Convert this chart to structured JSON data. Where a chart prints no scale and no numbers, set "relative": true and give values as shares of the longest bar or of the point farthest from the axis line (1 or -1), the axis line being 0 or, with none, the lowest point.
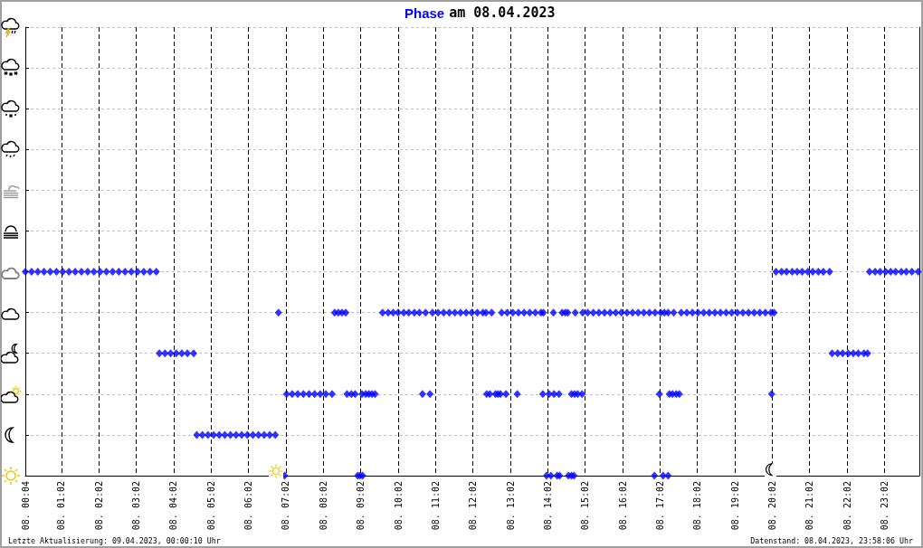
{
  "chart_data": {
    "type": "scatter",
    "title": "am 08.04.2023",
    "relative": true,
    "annotations": [
      "Letzte Aktualisierung: 09.04.2023, 00:00:10 Uhr",
      "Datenstand: 08.04.2023, 23:58:06 Uhr"
    ],
    "xlim": [
      "2023-04-08T00:04",
      "2023-04-08T23:58"
    ],
    "xticks": [
      {
        "value": "2023-04-08T00:04",
        "label": "08. 00:04"
      },
      {
        "value": "2023-04-08T01:02",
        "label": "08. 01:02"
      },
      {
        "value": "2023-04-08T02:02",
        "label": "08. 02:02"
      },
      {
        "value": "2023-04-08T03:02",
        "label": "08. 03:02"
      },
      {
        "value": "2023-04-08T04:02",
        "label": "08. 04:02"
      },
      {
        "value": "2023-04-08T05:02",
        "label": "08. 05:02"
      },
      {
        "value": "2023-04-08T06:02",
        "label": "08. 06:02"
      },
      {
        "value": "2023-04-08T07:02",
        "label": "08. 07:02"
      },
      {
        "value": "2023-04-08T08:02",
        "label": "08. 08:02"
      },
      {
        "value": "2023-04-08T09:02",
        "label": "08. 09:02"
      },
      {
        "value": "2023-04-08T10:02",
        "label": "08. 10:02"
      },
      {
        "value": "2023-04-08T11:02",
        "label": "08. 11:02"
      },
      {
        "value": "2023-04-08T12:02",
        "label": "08. 12:02"
      },
      {
        "value": "2023-04-08T13:02",
        "label": "08. 13:02"
      },
      {
        "value": "2023-04-08T14:02",
        "label": "08. 14:02"
      },
      {
        "value": "2023-04-08T15:02",
        "label": "08. 15:02"
      },
      {
        "value": "2023-04-08T16:02",
        "label": "08. 16:02"
      },
      {
        "value": "2023-04-08T17:02",
        "label": "08. 17:02"
      },
      {
        "value": "2023-04-08T18:02",
        "label": "08. 18:02"
      },
      {
        "value": "2023-04-08T19:02",
        "label": "08. 19:02"
      },
      {
        "value": "2023-04-08T20:02",
        "label": "08. 20:02"
      },
      {
        "value": "2023-04-08T21:02",
        "label": "08. 21:02"
      },
      {
        "value": "2023-04-08T22:02",
        "label": "08. 22:02"
      },
      {
        "value": "2023-04-08T23:02",
        "label": "08. 23:02"
      }
    ],
    "grid": true,
    "tick_labels": "x",
    "marker": "diamond",
    "series": [
      {
        "name": "Phase",
        "color": "#0000ff",
        "x": [
          "2023-04-08T00:04",
          "2023-04-08T00:14",
          "2023-04-08T00:24",
          "2023-04-08T00:34",
          "2023-04-08T00:44",
          "2023-04-08T00:54",
          "2023-04-08T01:04",
          "2023-04-08T01:14",
          "2023-04-08T01:24",
          "2023-04-08T01:34",
          "2023-04-08T01:44",
          "2023-04-08T01:54",
          "2023-04-08T02:04",
          "2023-04-08T02:14",
          "2023-04-08T02:24",
          "2023-04-08T02:34",
          "2023-04-08T02:44",
          "2023-04-08T02:54",
          "2023-04-08T03:04",
          "2023-04-08T03:14",
          "2023-04-08T03:24",
          "2023-04-08T03:34",
          "2023-04-08T03:39",
          "2023-04-08T03:48",
          "2023-04-08T03:57",
          "2023-04-08T04:06",
          "2023-04-08T04:15",
          "2023-04-08T04:24",
          "2023-04-08T04:34",
          "2023-04-08T04:39",
          "2023-04-08T04:48",
          "2023-04-08T04:57",
          "2023-04-08T05:06",
          "2023-04-08T05:15",
          "2023-04-08T05:24",
          "2023-04-08T05:33",
          "2023-04-08T05:42",
          "2023-04-08T05:51",
          "2023-04-08T06:00",
          "2023-04-08T06:09",
          "2023-04-08T06:18",
          "2023-04-08T06:27",
          "2023-04-08T06:36",
          "2023-04-08T06:45",
          "2023-04-08T06:50",
          "2023-04-08T07:00",
          "2023-04-08T07:03",
          "2023-04-08T07:12",
          "2023-04-08T07:21",
          "2023-04-08T07:30",
          "2023-04-08T07:39",
          "2023-04-08T07:48",
          "2023-04-08T07:57",
          "2023-04-08T08:06",
          "2023-04-08T08:16",
          "2023-04-08T08:20",
          "2023-04-08T08:26",
          "2023-04-08T08:32",
          "2023-04-08T08:38",
          "2023-04-08T08:40",
          "2023-04-08T08:47",
          "2023-04-08T08:53",
          "2023-04-08T08:57",
          "2023-04-08T09:01",
          "2023-04-08T09:05",
          "2023-04-08T09:04",
          "2023-04-08T09:10",
          "2023-04-08T09:15",
          "2023-04-08T09:20",
          "2023-04-08T09:25",
          "2023-04-08T09:37",
          "2023-04-08T09:46",
          "2023-04-08T09:54",
          "2023-04-08T10:02",
          "2023-04-08T10:11",
          "2023-04-08T10:19",
          "2023-04-08T10:28",
          "2023-04-08T10:36",
          "2023-04-08T10:41",
          "2023-04-08T10:46",
          "2023-04-08T10:53",
          "2023-04-08T10:57",
          "2023-04-08T11:06",
          "2023-04-08T11:15",
          "2023-04-08T11:24",
          "2023-04-08T11:33",
          "2023-04-08T11:42",
          "2023-04-08T11:51",
          "2023-04-08T12:00",
          "2023-04-08T12:09",
          "2023-04-08T12:18",
          "2023-04-08T12:23",
          "2023-04-08T12:24",
          "2023-04-08T12:29",
          "2023-04-08T12:32",
          "2023-04-08T12:38",
          "2023-04-08T12:42",
          "2023-04-08T12:46",
          "2023-04-08T12:48",
          "2023-04-08T12:57",
          "2023-04-08T13:06",
          "2023-04-08T13:15",
          "2023-04-08T13:24",
          "2023-04-08T13:33",
          "2023-04-08T13:42",
          "2023-04-08T13:51",
          "2023-04-08T13:55",
          "2023-04-08T12:55",
          "2023-04-08T13:13",
          "2023-04-08T13:54",
          "2023-04-08T14:00",
          "2023-04-08T14:04",
          "2023-04-08T14:07",
          "2023-04-08T14:11",
          "2023-04-08T14:12",
          "2023-04-08T14:17",
          "2023-04-08T14:21",
          "2023-04-08T14:20",
          "2023-04-08T14:25",
          "2023-04-08T14:30",
          "2023-04-08T14:34",
          "2023-04-08T14:35",
          "2023-04-08T14:40",
          "2023-04-08T14:44",
          "2023-04-08T14:40",
          "2023-04-08T14:45",
          "2023-04-08T14:50",
          "2023-04-08T14:57",
          "2023-04-08T14:46",
          "2023-04-08T14:58",
          "2023-04-08T15:06",
          "2023-04-08T15:15",
          "2023-04-08T15:24",
          "2023-04-08T15:33",
          "2023-04-08T15:42",
          "2023-04-08T15:51",
          "2023-04-08T16:00",
          "2023-04-08T16:09",
          "2023-04-08T16:18",
          "2023-04-08T16:27",
          "2023-04-08T16:36",
          "2023-04-08T16:45",
          "2023-04-08T16:54",
          "2023-04-08T17:03",
          "2023-04-08T17:09",
          "2023-04-08T17:15",
          "2023-04-08T16:53",
          "2023-04-08T17:01",
          "2023-04-08T17:07",
          "2023-04-08T17:15",
          "2023-04-08T17:17",
          "2023-04-08T17:22",
          "2023-04-08T17:28",
          "2023-04-08T17:33",
          "2023-04-08T17:24",
          "2023-04-08T17:36",
          "2023-04-08T17:45",
          "2023-04-08T17:54",
          "2023-04-08T18:03",
          "2023-04-08T18:12",
          "2023-04-08T18:21",
          "2023-04-08T18:30",
          "2023-04-08T18:39",
          "2023-04-08T18:48",
          "2023-04-08T18:57",
          "2023-04-08T19:06",
          "2023-04-08T19:15",
          "2023-04-08T19:24",
          "2023-04-08T19:33",
          "2023-04-08T19:42",
          "2023-04-08T19:51",
          "2023-04-08T20:00",
          "2023-04-08T20:05",
          "2023-04-08T20:01",
          "2023-04-08T20:08",
          "2023-04-08T20:17",
          "2023-04-08T20:25",
          "2023-04-08T20:34",
          "2023-04-08T20:42",
          "2023-04-08T20:50",
          "2023-04-08T20:59",
          "2023-04-08T21:07",
          "2023-04-08T21:16",
          "2023-04-08T21:24",
          "2023-04-08T21:34",
          "2023-04-08T21:38",
          "2023-04-08T21:47",
          "2023-04-08T21:55",
          "2023-04-08T22:04",
          "2023-04-08T22:12",
          "2023-04-08T22:20",
          "2023-04-08T22:29",
          "2023-04-08T22:35",
          "2023-04-08T22:38",
          "2023-04-08T22:47",
          "2023-04-08T22:55",
          "2023-04-08T23:04",
          "2023-04-08T23:12",
          "2023-04-08T23:20",
          "2023-04-08T23:29",
          "2023-04-08T23:37",
          "2023-04-08T23:46",
          "2023-04-08T23:56"
        ],
        "values": [
          1,
          1,
          1,
          1,
          1,
          1,
          1,
          1,
          1,
          1,
          1,
          1,
          1,
          1,
          1,
          1,
          1,
          1,
          1,
          1,
          1,
          1,
          0.6,
          0.6,
          0.6,
          0.6,
          0.6,
          0.6,
          0.6,
          0.2,
          0.2,
          0.2,
          0.2,
          0.2,
          0.2,
          0.2,
          0.2,
          0.2,
          0.2,
          0.2,
          0.2,
          0.2,
          0.2,
          0.2,
          0.8,
          0,
          0.4,
          0.4,
          0.4,
          0.4,
          0.4,
          0.4,
          0.4,
          0.4,
          0.4,
          0.8,
          0.8,
          0.8,
          0.8,
          0.4,
          0.4,
          0.4,
          0,
          0,
          0,
          0.4,
          0.4,
          0.4,
          0.4,
          0.4,
          0.8,
          0.8,
          0.8,
          0.8,
          0.8,
          0.8,
          0.8,
          0.8,
          0.4,
          0.8,
          0.4,
          0.8,
          0.8,
          0.8,
          0.8,
          0.8,
          0.8,
          0.8,
          0.8,
          0.8,
          0.8,
          0.8,
          0.4,
          0.4,
          0.8,
          0.4,
          0.4,
          0.4,
          0.8,
          0.8,
          0.8,
          0.8,
          0.8,
          0.8,
          0.8,
          0.8,
          0.8,
          0.4,
          0.4,
          0.4,
          0,
          0.4,
          0,
          0.8,
          0.4,
          0,
          0,
          0.4,
          0.8,
          0.8,
          0.8,
          0,
          0,
          0,
          0.4,
          0.4,
          0.4,
          0.4,
          0.8,
          0.8,
          0.8,
          0.8,
          0.8,
          0.8,
          0.8,
          0.8,
          0.8,
          0.8,
          0.8,
          0.8,
          0.8,
          0.8,
          0.8,
          0.8,
          0.8,
          0.8,
          0,
          0.4,
          0,
          0,
          0.4,
          0.4,
          0.4,
          0.4,
          0.8,
          0.8,
          0.8,
          0.8,
          0.8,
          0.8,
          0.8,
          0.8,
          0.8,
          0.8,
          0.8,
          0.8,
          0.8,
          0.8,
          0.8,
          0.8,
          0.8,
          0.8,
          0.8,
          0.4,
          1,
          1,
          1,
          1,
          1,
          1,
          1,
          1,
          1,
          1,
          1,
          0.6,
          0.6,
          0.6,
          0.6,
          0.6,
          0.6,
          0.6,
          0.6,
          1,
          1,
          1,
          1,
          1,
          1,
          1,
          1,
          1,
          1
        ]
      }
    ]
  }
}
